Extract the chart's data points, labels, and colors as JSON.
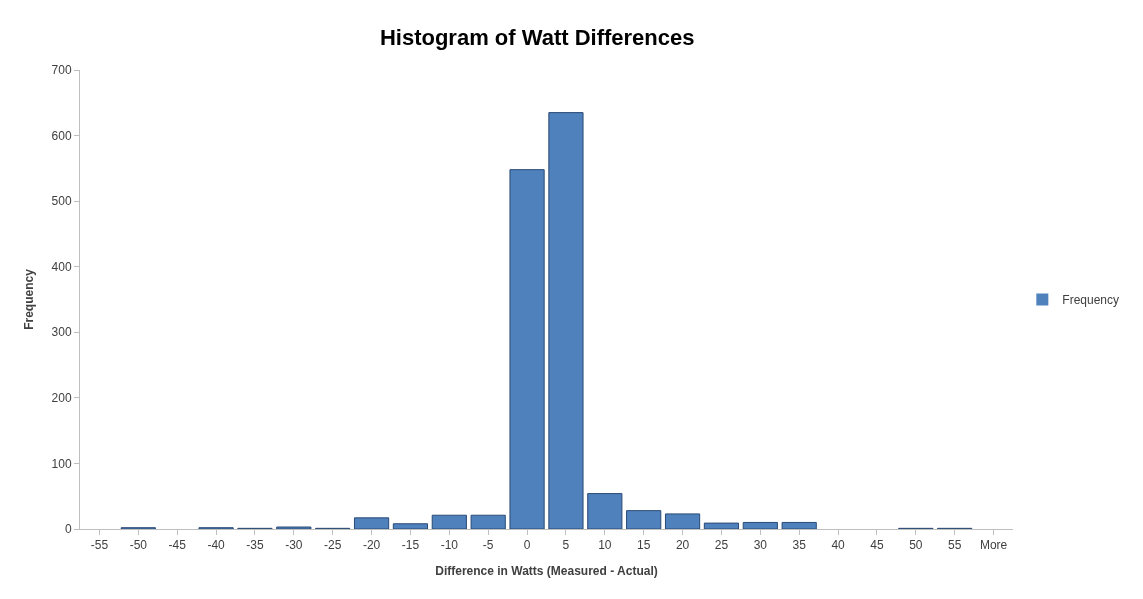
{
  "chart_data": {
    "type": "bar",
    "title": "Histogram of Watt Differences",
    "xlabel": "Difference in Watts (Measured - Actual)",
    "ylabel": "Frequency",
    "categories": [
      "-55",
      "-50",
      "-45",
      "-40",
      "-35",
      "-30",
      "-25",
      "-20",
      "-15",
      "-10",
      "-5",
      "0",
      "5",
      "10",
      "15",
      "20",
      "25",
      "30",
      "35",
      "40",
      "45",
      "50",
      "55",
      "More"
    ],
    "series": [
      {
        "name": "Frequency",
        "color": "#4f81bd",
        "values": [
          0,
          2,
          0,
          2,
          1,
          3,
          1,
          17,
          8,
          21,
          21,
          548,
          635,
          54,
          28,
          23,
          9,
          10,
          10,
          0,
          0,
          1,
          1,
          0
        ]
      }
    ],
    "ylim": [
      0,
      700
    ],
    "yticks": [
      0,
      100,
      200,
      300,
      400,
      500,
      600,
      700
    ],
    "legend": "right"
  }
}
